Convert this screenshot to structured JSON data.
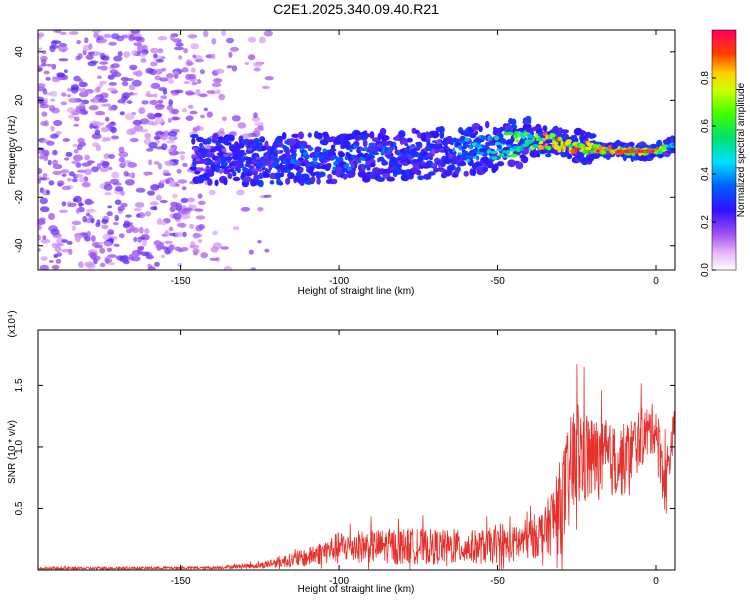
{
  "title": "C2E1.2025.340.09.40.R21",
  "chart_data": [
    {
      "type": "heatmap",
      "name": "spectrogram",
      "xlabel": "Height of straight line (km)",
      "ylabel": "Frequency (Hz)",
      "xlim": [
        -195,
        6
      ],
      "ylim": [
        -50,
        49
      ],
      "xticks": [
        -150,
        -100,
        -50,
        0
      ],
      "xtick_labels": [
        "-150",
        "-100",
        "-50",
        "0"
      ],
      "yticks": [
        -40,
        -20,
        0,
        20,
        40
      ],
      "ytick_labels": [
        "-40",
        "-20",
        "0",
        "20",
        "40"
      ],
      "colorbar": {
        "label": "Normalized spectral amplitude",
        "range": [
          0,
          1
        ],
        "ticks": [
          0,
          0.2,
          0.4,
          0.6,
          0.8
        ],
        "tick_labels": [
          "0.0",
          "0.2",
          "0.4",
          "0.6",
          "0.8"
        ]
      },
      "signal_track": [
        {
          "x": -146,
          "f": -4,
          "amp": 0.2
        },
        {
          "x": -130,
          "f": -5,
          "amp": 0.3
        },
        {
          "x": -110,
          "f": -4,
          "amp": 0.35
        },
        {
          "x": -90,
          "f": -3,
          "amp": 0.35
        },
        {
          "x": -70,
          "f": -2,
          "amp": 0.3
        },
        {
          "x": -50,
          "f": 1,
          "amp": 0.5
        },
        {
          "x": -35,
          "f": 3.5,
          "amp": 0.85
        },
        {
          "x": -20,
          "f": 0,
          "amp": 0.9
        },
        {
          "x": -10,
          "f": -1,
          "amp": 0.95
        },
        {
          "x": 0,
          "f": -1,
          "amp": 0.9
        },
        {
          "x": 6,
          "f": 2,
          "amp": 0.4
        }
      ],
      "noise_region": [
        -195,
        -130
      ]
    },
    {
      "type": "line",
      "name": "snr",
      "xlabel": "Height of straight line (km)",
      "ylabel": "SNR (10 * v/v)",
      "y_scale_label": "(x10⁴)",
      "xlim": [
        -195,
        6
      ],
      "ylim": [
        0,
        1.95
      ],
      "xticks": [
        -150,
        -100,
        -50,
        0
      ],
      "xtick_labels": [
        "-150",
        "-100",
        "-50",
        "0"
      ],
      "yticks": [
        0.5,
        1.0,
        1.5
      ],
      "ytick_labels": [
        "0.5",
        "1.0",
        "1.5"
      ],
      "series": [
        {
          "name": "SNR",
          "color": "#e8302b",
          "envelope": [
            {
              "x": -195,
              "base": 0.01,
              "amp": 0.02
            },
            {
              "x": -140,
              "base": 0.015,
              "amp": 0.02
            },
            {
              "x": -125,
              "base": 0.03,
              "amp": 0.05
            },
            {
              "x": -110,
              "base": 0.08,
              "amp": 0.15
            },
            {
              "x": -100,
              "base": 0.15,
              "amp": 0.25
            },
            {
              "x": -80,
              "base": 0.15,
              "amp": 0.3
            },
            {
              "x": -60,
              "base": 0.14,
              "amp": 0.28
            },
            {
              "x": -45,
              "base": 0.16,
              "amp": 0.3
            },
            {
              "x": -35,
              "base": 0.25,
              "amp": 0.4
            },
            {
              "x": -30,
              "base": 0.4,
              "amp": 0.8
            },
            {
              "x": -25,
              "base": 0.8,
              "amp": 1.0
            },
            {
              "x": -20,
              "base": 0.8,
              "amp": 0.7
            },
            {
              "x": -15,
              "base": 0.8,
              "amp": 0.6
            },
            {
              "x": -10,
              "base": 0.8,
              "amp": 0.6
            },
            {
              "x": -5,
              "base": 1.0,
              "amp": 0.5
            },
            {
              "x": 0,
              "base": 1.1,
              "amp": 0.4
            },
            {
              "x": 3,
              "base": 0.6,
              "amp": 0.6
            },
            {
              "x": 6,
              "base": 1.2,
              "amp": 0.2
            }
          ]
        }
      ]
    }
  ]
}
